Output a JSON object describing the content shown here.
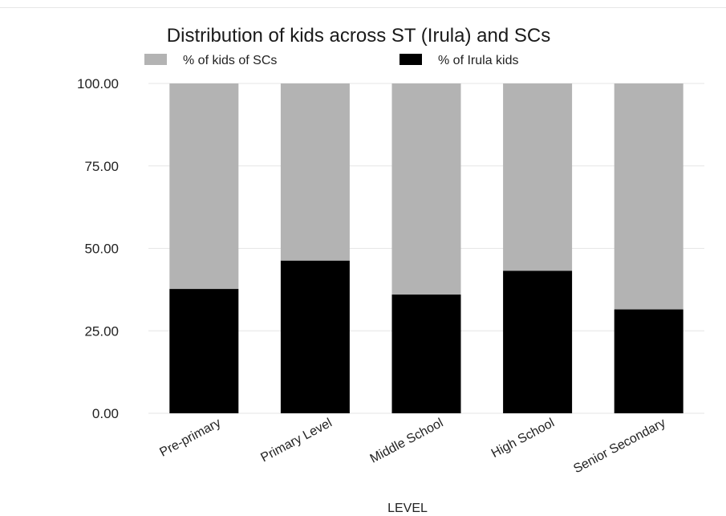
{
  "chart_data": {
    "type": "bar",
    "stacked": true,
    "title": "Distribution of kids across ST (Irula) and SCs",
    "xlabel": "LEVEL",
    "ylabel": "",
    "ylim": [
      0,
      100
    ],
    "yticks": [
      "0.00",
      "25.00",
      "50.00",
      "75.00",
      "100.00"
    ],
    "ytick_values": [
      0,
      25,
      50,
      75,
      100
    ],
    "categories": [
      "Pre-primary",
      "Primary Level",
      "Middle School",
      "High School",
      "Senior Secondary"
    ],
    "series": [
      {
        "name": "% of Irula kids",
        "color": "#000000",
        "values": [
          37.7,
          46.3,
          36.0,
          43.2,
          31.5
        ]
      },
      {
        "name": "% of kids of SCs",
        "color": "#b3b3b3",
        "values": [
          62.3,
          53.7,
          64.0,
          56.8,
          68.5
        ]
      }
    ],
    "legend": {
      "position": "top",
      "items": [
        {
          "label": "% of kids of SCs",
          "color": "#b3b3b3"
        },
        {
          "label": "% of Irula kids",
          "color": "#000000"
        }
      ]
    },
    "grid": true,
    "gridline_color": "#e6e6e6"
  }
}
